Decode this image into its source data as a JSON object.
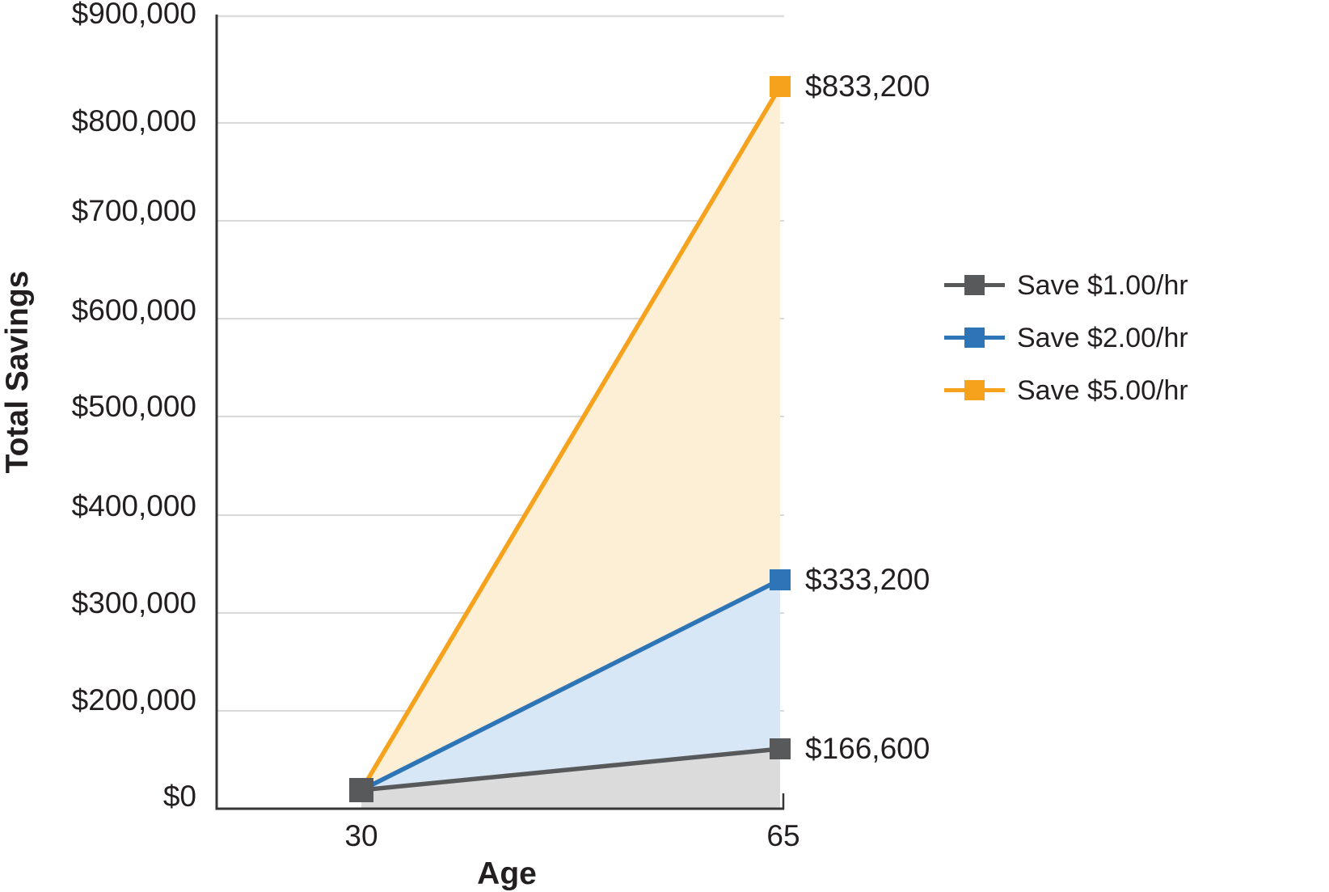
{
  "chart_data": {
    "type": "line",
    "title": "",
    "xlabel": "Age",
    "ylabel": "Total Savings",
    "x": [
      30,
      65
    ],
    "x_tick_labels": [
      "30",
      "65"
    ],
    "y_tick_labels": [
      "$900,000",
      "$800,000",
      "$700,000",
      "$600,000",
      "$500,000",
      "$400,000",
      "$300,000",
      "$200,000",
      "$0"
    ],
    "ylim": [
      0,
      900000
    ],
    "grid": "horizontal",
    "legend_position": "right",
    "area_fill": true,
    "series": [
      {
        "name": "Save $1.00/hr",
        "values": [
          0,
          166600
        ],
        "end_label": "$166,600",
        "color": "#58595B",
        "fill": "#DBDBDB"
      },
      {
        "name": "Save $2.00/hr",
        "values": [
          0,
          333200
        ],
        "end_label": "$333,200",
        "color": "#2E75B8",
        "fill": "#D8E7F5"
      },
      {
        "name": "Save $5.00/hr",
        "values": [
          0,
          833200
        ],
        "end_label": "$833,200",
        "color": "#F6A21D",
        "fill": "#FCEFD5"
      }
    ]
  }
}
